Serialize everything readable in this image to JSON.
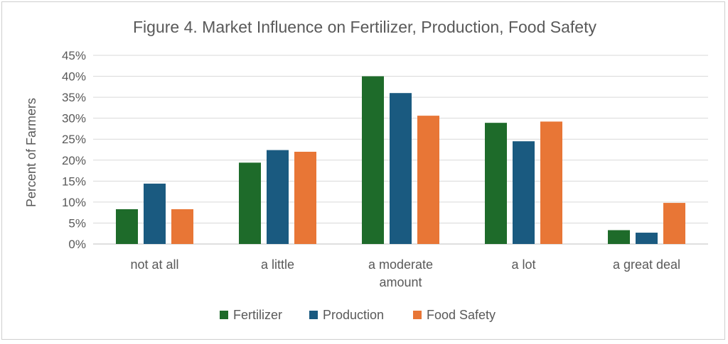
{
  "chart_data": {
    "type": "bar",
    "title": "Figure 4. Market Influence on Fertilizer, Production, Food Safety",
    "xlabel": "",
    "ylabel": "Percent of Farmers",
    "categories": [
      [
        "not at all"
      ],
      [
        "a little"
      ],
      [
        "a moderate",
        "amount"
      ],
      [
        "a lot"
      ],
      [
        "a great deal"
      ]
    ],
    "series": [
      {
        "name": "Fertilizer",
        "color": "#1e6b2a",
        "values": [
          8.3,
          19.4,
          40.0,
          28.9,
          3.3
        ]
      },
      {
        "name": "Production",
        "color": "#1a5a80",
        "values": [
          14.4,
          22.4,
          36.0,
          24.5,
          2.7
        ]
      },
      {
        "name": "Food Safety",
        "color": "#e87636",
        "values": [
          8.3,
          22.0,
          30.6,
          29.2,
          9.8
        ]
      }
    ],
    "ylim": [
      0,
      45
    ],
    "yticks": [
      "0%",
      "5%",
      "10%",
      "15%",
      "20%",
      "25%",
      "30%",
      "35%",
      "40%",
      "45%"
    ],
    "grid": true,
    "legend_position": "bottom"
  }
}
